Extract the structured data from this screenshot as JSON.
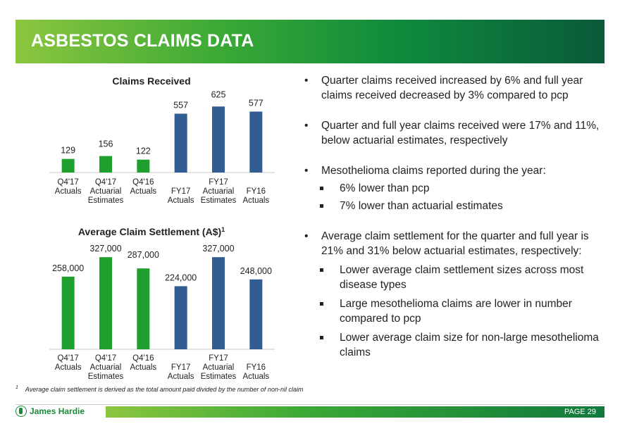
{
  "header": {
    "title": "ASBESTOS CLAIMS DATA"
  },
  "chart_data": [
    {
      "type": "bar",
      "title": "Claims Received",
      "categories": [
        "Q4'17 Actuals",
        "Q4'17 Actuarial Estimates",
        "Q4'16 Actuals",
        "FY17 Actuals",
        "FY17 Actuarial Estimates",
        "FY16 Actuals"
      ],
      "tick_lines": [
        [
          "Q4'17",
          "Actuals"
        ],
        [
          "Q4'17",
          "Actuarial",
          "Estimates"
        ],
        [
          "Q4'16",
          "Actuals"
        ],
        [
          "",
          "FY17",
          "Actuals"
        ],
        [
          "FY17",
          "Actuarial",
          "Estimates"
        ],
        [
          "",
          "FY16",
          "Actuals"
        ]
      ],
      "values": [
        129,
        156,
        122,
        557,
        625,
        577
      ],
      "value_labels": [
        "129",
        "156",
        "122",
        "557",
        "625",
        "577"
      ],
      "colors": [
        "#1fa02e",
        "#1fa02e",
        "#1fa02e",
        "#325d93",
        "#325d93",
        "#325d93"
      ],
      "ylim": [
        0,
        700
      ],
      "grid": false,
      "xlabel": "",
      "ylabel": ""
    },
    {
      "type": "bar",
      "title": "Average Claim Settlement (A$)",
      "title_superscript": "1",
      "categories": [
        "Q4'17 Actuals",
        "Q4'17 Actuarial Estimates",
        "Q4'16 Actuals",
        "FY17 Actuals",
        "FY17 Actuarial Estimates",
        "FY16 Actuals"
      ],
      "tick_lines": [
        [
          "Q4'17",
          "Actuals"
        ],
        [
          "Q4'17",
          "Actuarial",
          "Estimates"
        ],
        [
          "Q4'16",
          "Actuals"
        ],
        [
          "",
          "FY17",
          "Actuals"
        ],
        [
          "FY17",
          "Actuarial",
          "Estimates"
        ],
        [
          "",
          "FY16",
          "Actuals"
        ]
      ],
      "values": [
        258000,
        327000,
        287000,
        224000,
        327000,
        248000
      ],
      "value_labels": [
        "258,000",
        "327,000",
        "287,000",
        "224,000",
        "327,000",
        "248,000"
      ],
      "colors": [
        "#1fa02e",
        "#1fa02e",
        "#1fa02e",
        "#325d93",
        "#325d93",
        "#325d93"
      ],
      "ylim": [
        0,
        350000
      ],
      "grid": false,
      "xlabel": "",
      "ylabel": ""
    }
  ],
  "bullets": [
    {
      "text": "Quarter claims received increased by 6% and full year claims received decreased by 3% compared to pcp",
      "subs": []
    },
    {
      "text": "Quarter and full year claims received were 17% and 11%, below actuarial estimates, respectively",
      "subs": []
    },
    {
      "text": "Mesothelioma claims reported during the year:",
      "subs": [
        "6% lower than pcp",
        "7% lower than actuarial estimates"
      ]
    },
    {
      "text": "Average claim settlement for the quarter and full year is 21% and 31% below actuarial estimates, respectively:",
      "subs": [
        "Lower average claim settlement sizes across most disease types",
        "Large mesothelioma claims are lower in number compared to pcp",
        "Lower average claim size for non-large mesothelioma claims"
      ]
    }
  ],
  "footnote": {
    "marker": "1",
    "text": "Average claim settlement is derived as the total amount paid divided by the number of non-nil claim"
  },
  "footer": {
    "logo_text": "James Hardie",
    "page_label": "PAGE  29"
  }
}
